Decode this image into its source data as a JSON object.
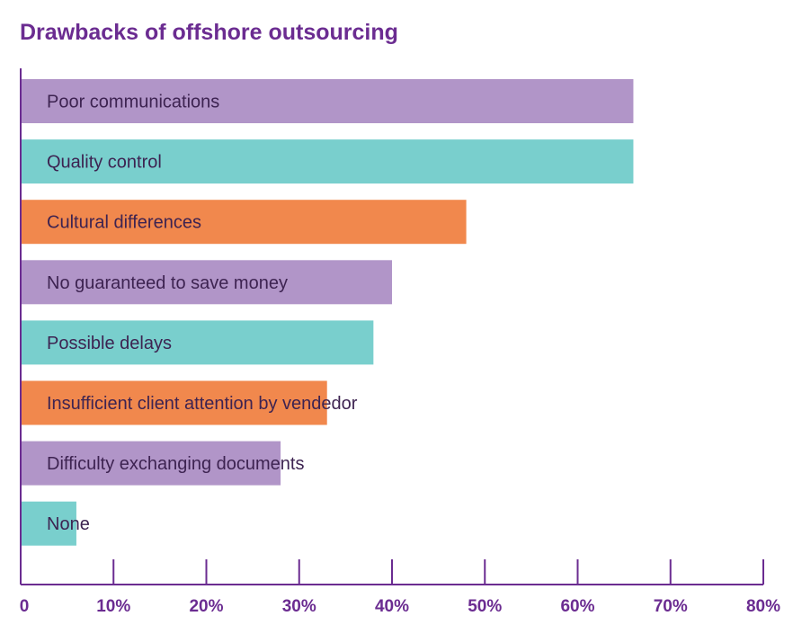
{
  "chart_data": {
    "type": "bar",
    "orientation": "horizontal",
    "title": "Drawbacks of offshore outsourcing",
    "categories": [
      "Poor communications",
      "Quality control",
      "Cultural differences",
      "No guaranteed to save money",
      "Possible delays",
      "Insufficient client attention by vendedor",
      "Difficulty exchanging documents",
      "None"
    ],
    "values": [
      66,
      66,
      48,
      40,
      38,
      33,
      28,
      6
    ],
    "unit": "%",
    "xlim": [
      0,
      80
    ],
    "ticks": [
      0,
      10,
      20,
      30,
      40,
      50,
      60,
      70,
      80
    ],
    "tick_labels": [
      "0",
      "10%",
      "20%",
      "30%",
      "40%",
      "50%",
      "60%",
      "70%",
      "80%"
    ],
    "colors": [
      "#b195c8",
      "#79cfcd",
      "#f1884d",
      "#b195c8",
      "#79cfcd",
      "#f1884d",
      "#b195c8",
      "#79cfcd"
    ],
    "axis_color": "#6b2c91",
    "grid": false
  }
}
